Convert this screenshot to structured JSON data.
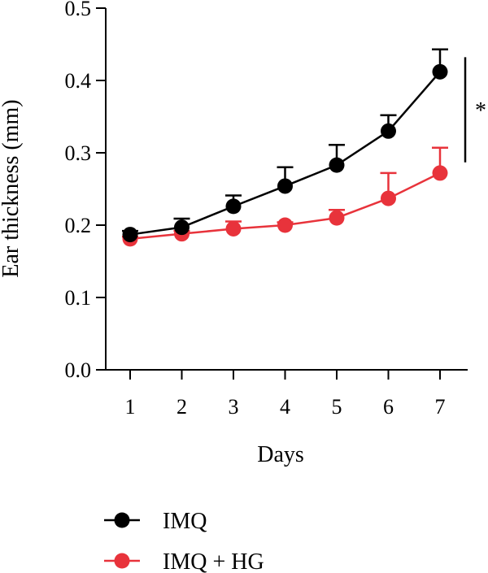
{
  "chart_data": {
    "type": "line",
    "xlabel": "Days",
    "ylabel": "Ear thickness (mm)",
    "x": [
      1,
      2,
      3,
      4,
      5,
      6,
      7
    ],
    "x_tick_labels": [
      "1",
      "2",
      "3",
      "4",
      "5",
      "6",
      "7"
    ],
    "ylim": [
      0,
      0.5
    ],
    "y_ticks": [
      0.0,
      0.1,
      0.2,
      0.3,
      0.4,
      0.5
    ],
    "y_tick_labels": [
      "0.0",
      "0.1",
      "0.2",
      "0.3",
      "0.4",
      "0.5"
    ],
    "grid": false,
    "legend_position": "bottom-left",
    "series": [
      {
        "name": "IMQ",
        "color": "#000000",
        "values": [
          0.187,
          0.197,
          0.226,
          0.254,
          0.283,
          0.33,
          0.412
        ],
        "error_upper": [
          0.005,
          0.012,
          0.015,
          0.026,
          0.028,
          0.022,
          0.031
        ]
      },
      {
        "name": "IMQ + HG",
        "color": "#e8333b",
        "values": [
          0.181,
          0.188,
          0.195,
          0.2,
          0.21,
          0.237,
          0.272
        ],
        "error_upper": [
          0.003,
          0.004,
          0.01,
          0.004,
          0.011,
          0.035,
          0.035
        ]
      }
    ],
    "annotations": [
      {
        "text": "*",
        "type": "significance",
        "between_series": [
          "IMQ",
          "IMQ + HG"
        ],
        "at_x": 7
      }
    ]
  }
}
